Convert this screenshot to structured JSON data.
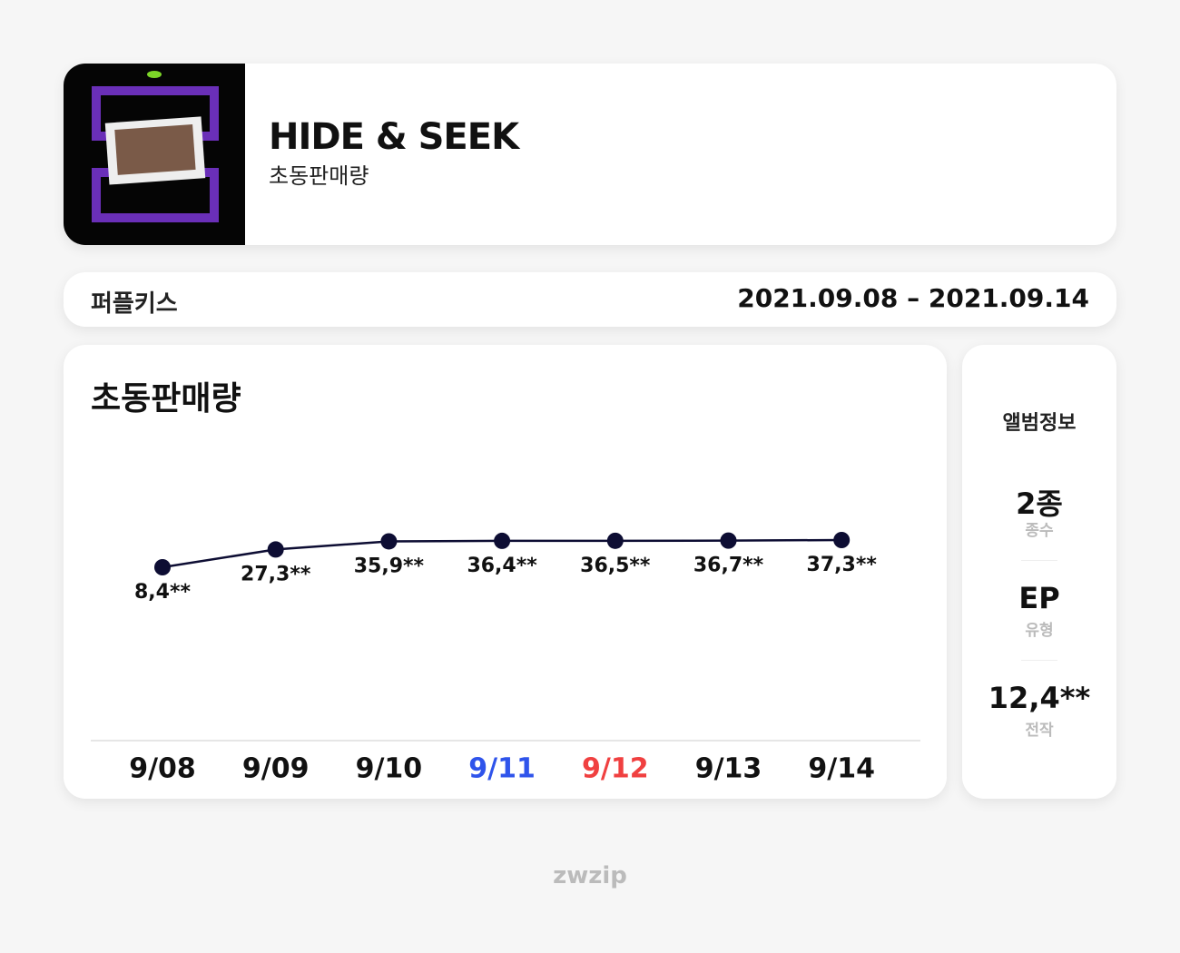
{
  "header": {
    "title": "HIDE & SEEK",
    "subtitle": "초동판매량"
  },
  "info_bar": {
    "artist": "퍼플키스",
    "period": "2021.09.08 – 2021.09.14"
  },
  "chart_data": {
    "type": "line",
    "title": "초동판매량",
    "categories": [
      "9/08",
      "9/09",
      "9/10",
      "9/11",
      "9/12",
      "9/13",
      "9/14"
    ],
    "category_colors": [
      "#111111",
      "#111111",
      "#111111",
      "#2f54eb",
      "#f04040",
      "#111111",
      "#111111"
    ],
    "values": [
      8400,
      27300,
      35900,
      36400,
      36500,
      36700,
      37300
    ],
    "value_labels": [
      "8,4**",
      "27,3**",
      "35,9**",
      "36,4**",
      "36,5**",
      "36,7**",
      "37,3**"
    ],
    "color": "#0d0d33"
  },
  "album_info": {
    "title": "앨범정보",
    "items": [
      {
        "value": "2종",
        "label": "종수"
      },
      {
        "value": "EP",
        "label": "유형"
      },
      {
        "value": "12,4**",
        "label": "전작"
      }
    ]
  },
  "footer": "zwzip"
}
